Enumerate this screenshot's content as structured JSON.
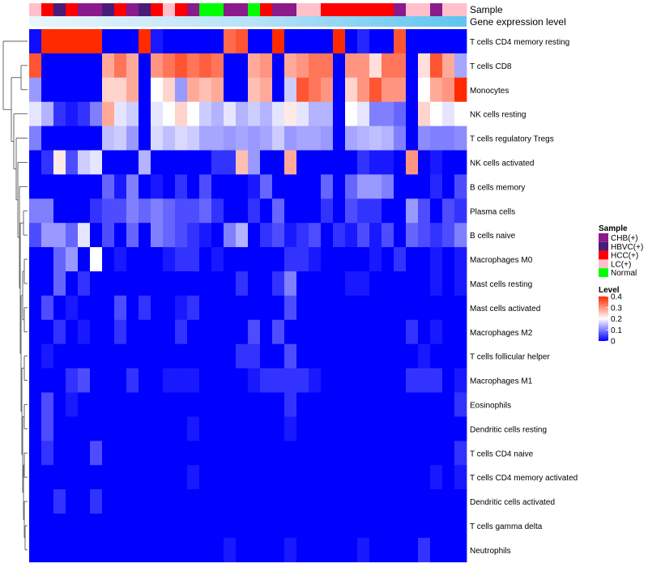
{
  "chart_data": {
    "type": "heatmap",
    "annotation_labels": {
      "sample": "Sample",
      "gene_expression": "Gene expression level"
    },
    "sample_legend": {
      "title": "Sample",
      "entries": [
        {
          "label": "CHB(+)",
          "color": "#8B1A8B"
        },
        {
          "label": "HBVC(+)",
          "color": "#4A1C7A"
        },
        {
          "label": "HCC(+)",
          "color": "#FF0000"
        },
        {
          "label": "LC(+)",
          "color": "#FFC0CB"
        },
        {
          "label": "Normal",
          "color": "#00FF00"
        }
      ]
    },
    "level_legend": {
      "title": "Level",
      "ticks": [
        0.4,
        0.3,
        0.2,
        0.1,
        0
      ],
      "tick_labels": [
        "0.4",
        "0.3",
        "0.2",
        "0.1",
        "0"
      ],
      "range": [
        0,
        0.4
      ],
      "colors": {
        "low": "#0000FF",
        "mid": "#FFFFFF",
        "high": "#FF2A00"
      }
    },
    "sample_groups": [
      "LC(+)",
      "HCC(+)",
      "HBVC(+)",
      "HCC(+)",
      "CHB(+)",
      "CHB(+)",
      "HBVC(+)",
      "HCC(+)",
      "CHB(+)",
      "HBVC(+)",
      "HCC(+)",
      "LC(+)",
      "HCC(+)",
      "CHB(+)",
      "Normal",
      "Normal",
      "CHB(+)",
      "CHB(+)",
      "Normal",
      "HCC(+)",
      "CHB(+)",
      "CHB(+)",
      "LC(+)",
      "LC(+)",
      "HCC(+)",
      "HCC(+)",
      "HCC(+)",
      "HCC(+)",
      "HCC(+)",
      "HCC(+)",
      "CHB(+)",
      "LC(+)",
      "LC(+)",
      "CHB(+)",
      "LC(+)",
      "LC(+)"
    ],
    "rows": [
      "T cells CD4 memory resting",
      "T cells CD8",
      "Monocytes",
      "NK cells resting",
      "T cells regulatory  Tregs",
      "NK cells activated",
      "B cells memory",
      "Plasma cells",
      "B cells naive",
      "Macrophages M0",
      "Mast cells resting",
      "Mast cells activated",
      "Macrophages M2",
      "T cells follicular helper",
      "Macrophages M1",
      "Eosinophils",
      "Dendritic cells resting",
      "T cells CD4 naive",
      "T cells CD4 memory activated",
      "Dendritic cells activated",
      "T cells gamma delta",
      "Neutrophils"
    ],
    "values": [
      [
        0.01,
        0.4,
        0.4,
        0.4,
        0.4,
        0.4,
        0.0,
        0.0,
        0.0,
        0.4,
        0.02,
        0.0,
        0.0,
        0.0,
        0.0,
        0.0,
        0.34,
        0.36,
        0.0,
        0.0,
        0.4,
        0.0,
        0.0,
        0.0,
        0.0,
        0.4,
        0.0,
        0.03,
        0.0,
        0.0,
        0.36,
        0.0,
        0.0,
        0.0,
        0.0,
        0.0
      ],
      [
        0.36,
        0.0,
        0.0,
        0.0,
        0.0,
        0.0,
        0.28,
        0.33,
        0.28,
        0.0,
        0.3,
        0.33,
        0.36,
        0.33,
        0.35,
        0.33,
        0.0,
        0.0,
        0.28,
        0.3,
        0.0,
        0.28,
        0.3,
        0.33,
        0.33,
        0.0,
        0.3,
        0.3,
        0.23,
        0.33,
        0.33,
        0.0,
        0.23,
        0.36,
        0.28,
        0.13
      ],
      [
        0.12,
        0.0,
        0.0,
        0.0,
        0.0,
        0.0,
        0.24,
        0.24,
        0.28,
        0.0,
        0.2,
        0.24,
        0.12,
        0.28,
        0.26,
        0.28,
        0.0,
        0.0,
        0.26,
        0.28,
        0.0,
        0.16,
        0.36,
        0.33,
        0.3,
        0.0,
        0.24,
        0.3,
        0.36,
        0.3,
        0.3,
        0.0,
        0.2,
        0.28,
        0.3,
        0.4
      ],
      [
        0.18,
        0.14,
        0.04,
        0.02,
        0.04,
        0.1,
        0.28,
        0.18,
        0.16,
        0.0,
        0.18,
        0.2,
        0.24,
        0.2,
        0.16,
        0.14,
        0.18,
        0.14,
        0.16,
        0.14,
        0.18,
        0.22,
        0.18,
        0.14,
        0.14,
        0.0,
        0.2,
        0.18,
        0.1,
        0.1,
        0.08,
        0.0,
        0.24,
        0.2,
        0.18,
        0.2
      ],
      [
        0.1,
        0.0,
        0.0,
        0.0,
        0.0,
        0.0,
        0.15,
        0.16,
        0.12,
        0.0,
        0.17,
        0.15,
        0.17,
        0.16,
        0.13,
        0.13,
        0.12,
        0.13,
        0.12,
        0.13,
        0.16,
        0.12,
        0.13,
        0.13,
        0.12,
        0.0,
        0.13,
        0.14,
        0.15,
        0.14,
        0.1,
        0.0,
        0.11,
        0.1,
        0.1,
        0.11
      ],
      [
        0.0,
        0.04,
        0.22,
        0.06,
        0.16,
        0.18,
        0.0,
        0.0,
        0.0,
        0.14,
        0.0,
        0.0,
        0.0,
        0.0,
        0.0,
        0.04,
        0.04,
        0.26,
        0.12,
        0.0,
        0.0,
        0.28,
        0.0,
        0.0,
        0.0,
        0.0,
        0.0,
        0.04,
        0.02,
        0.02,
        0.0,
        0.3,
        0.0,
        0.02,
        0.0,
        0.0
      ],
      [
        0.0,
        0.0,
        0.0,
        0.0,
        0.0,
        0.0,
        0.08,
        0.02,
        0.1,
        0.0,
        0.02,
        0.0,
        0.04,
        0.0,
        0.06,
        0.0,
        0.0,
        0.0,
        0.02,
        0.08,
        0.0,
        0.0,
        0.0,
        0.0,
        0.08,
        0.0,
        0.08,
        0.12,
        0.12,
        0.1,
        0.0,
        0.0,
        0.0,
        0.03,
        0.0,
        0.06
      ],
      [
        0.1,
        0.1,
        0.0,
        0.0,
        0.0,
        0.04,
        0.06,
        0.06,
        0.1,
        0.08,
        0.1,
        0.08,
        0.06,
        0.06,
        0.08,
        0.04,
        0.0,
        0.0,
        0.04,
        0.0,
        0.08,
        0.0,
        0.0,
        0.0,
        0.04,
        0.0,
        0.06,
        0.04,
        0.04,
        0.0,
        0.0,
        0.12,
        0.06,
        0.0,
        0.06,
        0.04
      ],
      [
        0.06,
        0.12,
        0.12,
        0.08,
        0.18,
        0.0,
        0.06,
        0.0,
        0.08,
        0.0,
        0.1,
        0.08,
        0.06,
        0.04,
        0.02,
        0.0,
        0.1,
        0.14,
        0.0,
        0.04,
        0.06,
        0.02,
        0.04,
        0.06,
        0.0,
        0.04,
        0.02,
        0.06,
        0.02,
        0.06,
        0.0,
        0.08,
        0.06,
        0.04,
        0.06,
        0.1
      ],
      [
        0.0,
        0.0,
        0.08,
        0.12,
        0.0,
        0.2,
        0.0,
        0.02,
        0.0,
        0.0,
        0.0,
        0.02,
        0.04,
        0.04,
        0.0,
        0.02,
        0.0,
        0.0,
        0.0,
        0.0,
        0.0,
        0.04,
        0.04,
        0.02,
        0.0,
        0.0,
        0.0,
        0.0,
        0.02,
        0.0,
        0.04,
        0.0,
        0.0,
        0.02,
        0.0,
        0.02
      ],
      [
        0.0,
        0.0,
        0.08,
        0.0,
        0.04,
        0.0,
        0.0,
        0.0,
        0.0,
        0.0,
        0.0,
        0.0,
        0.0,
        0.0,
        0.0,
        0.0,
        0.0,
        0.04,
        0.0,
        0.0,
        0.04,
        0.1,
        0.0,
        0.0,
        0.0,
        0.0,
        0.02,
        0.02,
        0.0,
        0.0,
        0.0,
        0.0,
        0.0,
        0.02,
        0.0,
        0.02
      ],
      [
        0.0,
        0.06,
        0.0,
        0.02,
        0.0,
        0.0,
        0.0,
        0.06,
        0.0,
        0.04,
        0.0,
        0.0,
        0.02,
        0.04,
        0.0,
        0.0,
        0.0,
        0.0,
        0.0,
        0.0,
        0.0,
        0.06,
        0.0,
        0.0,
        0.0,
        0.0,
        0.0,
        0.0,
        0.0,
        0.0,
        0.0,
        0.0,
        0.0,
        0.0,
        0.0,
        0.0
      ],
      [
        0.0,
        0.0,
        0.04,
        0.0,
        0.02,
        0.0,
        0.0,
        0.04,
        0.0,
        0.0,
        0.0,
        0.0,
        0.04,
        0.0,
        0.0,
        0.0,
        0.0,
        0.0,
        0.06,
        0.0,
        0.06,
        0.0,
        0.0,
        0.0,
        0.0,
        0.0,
        0.0,
        0.0,
        0.0,
        0.0,
        0.0,
        0.04,
        0.0,
        0.02,
        0.0,
        0.0
      ],
      [
        0.0,
        0.02,
        0.0,
        0.0,
        0.0,
        0.0,
        0.0,
        0.0,
        0.0,
        0.0,
        0.0,
        0.0,
        0.0,
        0.0,
        0.0,
        0.0,
        0.0,
        0.04,
        0.04,
        0.0,
        0.0,
        0.06,
        0.0,
        0.0,
        0.0,
        0.0,
        0.0,
        0.0,
        0.0,
        0.0,
        0.0,
        0.0,
        0.02,
        0.0,
        0.0,
        0.0
      ],
      [
        0.0,
        0.0,
        0.0,
        0.04,
        0.06,
        0.0,
        0.0,
        0.0,
        0.04,
        0.0,
        0.0,
        0.02,
        0.02,
        0.02,
        0.0,
        0.0,
        0.0,
        0.0,
        0.02,
        0.04,
        0.04,
        0.04,
        0.04,
        0.02,
        0.0,
        0.0,
        0.0,
        0.0,
        0.0,
        0.0,
        0.0,
        0.04,
        0.04,
        0.04,
        0.0,
        0.02
      ],
      [
        0.0,
        0.06,
        0.0,
        0.02,
        0.0,
        0.0,
        0.0,
        0.0,
        0.0,
        0.0,
        0.0,
        0.0,
        0.0,
        0.0,
        0.0,
        0.0,
        0.0,
        0.0,
        0.0,
        0.0,
        0.0,
        0.04,
        0.0,
        0.0,
        0.0,
        0.0,
        0.0,
        0.0,
        0.0,
        0.0,
        0.0,
        0.0,
        0.0,
        0.0,
        0.0,
        0.04
      ],
      [
        0.0,
        0.06,
        0.0,
        0.0,
        0.0,
        0.0,
        0.0,
        0.0,
        0.0,
        0.0,
        0.0,
        0.0,
        0.0,
        0.02,
        0.0,
        0.0,
        0.0,
        0.0,
        0.0,
        0.0,
        0.0,
        0.02,
        0.0,
        0.0,
        0.0,
        0.0,
        0.0,
        0.0,
        0.0,
        0.0,
        0.0,
        0.0,
        0.0,
        0.0,
        0.0,
        0.0
      ],
      [
        0.0,
        0.04,
        0.0,
        0.0,
        0.0,
        0.06,
        0.0,
        0.0,
        0.0,
        0.0,
        0.0,
        0.0,
        0.0,
        0.0,
        0.0,
        0.0,
        0.0,
        0.0,
        0.0,
        0.0,
        0.0,
        0.0,
        0.0,
        0.0,
        0.0,
        0.0,
        0.0,
        0.0,
        0.0,
        0.0,
        0.0,
        0.0,
        0.0,
        0.0,
        0.0,
        0.04
      ],
      [
        0.0,
        0.0,
        0.0,
        0.0,
        0.0,
        0.0,
        0.0,
        0.0,
        0.0,
        0.0,
        0.0,
        0.0,
        0.0,
        0.02,
        0.0,
        0.0,
        0.0,
        0.0,
        0.0,
        0.0,
        0.0,
        0.0,
        0.0,
        0.0,
        0.0,
        0.0,
        0.0,
        0.0,
        0.0,
        0.0,
        0.0,
        0.0,
        0.0,
        0.02,
        0.0,
        0.02
      ],
      [
        0.0,
        0.0,
        0.04,
        0.0,
        0.0,
        0.04,
        0.0,
        0.0,
        0.0,
        0.0,
        0.0,
        0.0,
        0.0,
        0.0,
        0.0,
        0.0,
        0.0,
        0.0,
        0.0,
        0.0,
        0.0,
        0.0,
        0.0,
        0.0,
        0.0,
        0.0,
        0.0,
        0.0,
        0.0,
        0.0,
        0.0,
        0.0,
        0.0,
        0.0,
        0.0,
        0.0
      ],
      [
        0.0,
        0.0,
        0.0,
        0.0,
        0.0,
        0.0,
        0.0,
        0.0,
        0.0,
        0.0,
        0.0,
        0.0,
        0.0,
        0.0,
        0.0,
        0.0,
        0.0,
        0.0,
        0.0,
        0.0,
        0.0,
        0.0,
        0.0,
        0.0,
        0.0,
        0.0,
        0.0,
        0.0,
        0.0,
        0.0,
        0.0,
        0.0,
        0.0,
        0.0,
        0.0,
        0.0
      ],
      [
        0.0,
        0.0,
        0.0,
        0.0,
        0.0,
        0.0,
        0.0,
        0.0,
        0.0,
        0.0,
        0.0,
        0.0,
        0.0,
        0.0,
        0.0,
        0.0,
        0.02,
        0.0,
        0.0,
        0.0,
        0.0,
        0.02,
        0.0,
        0.0,
        0.0,
        0.0,
        0.0,
        0.02,
        0.0,
        0.0,
        0.0,
        0.0,
        0.04,
        0.0,
        0.0,
        0.0
      ]
    ]
  }
}
